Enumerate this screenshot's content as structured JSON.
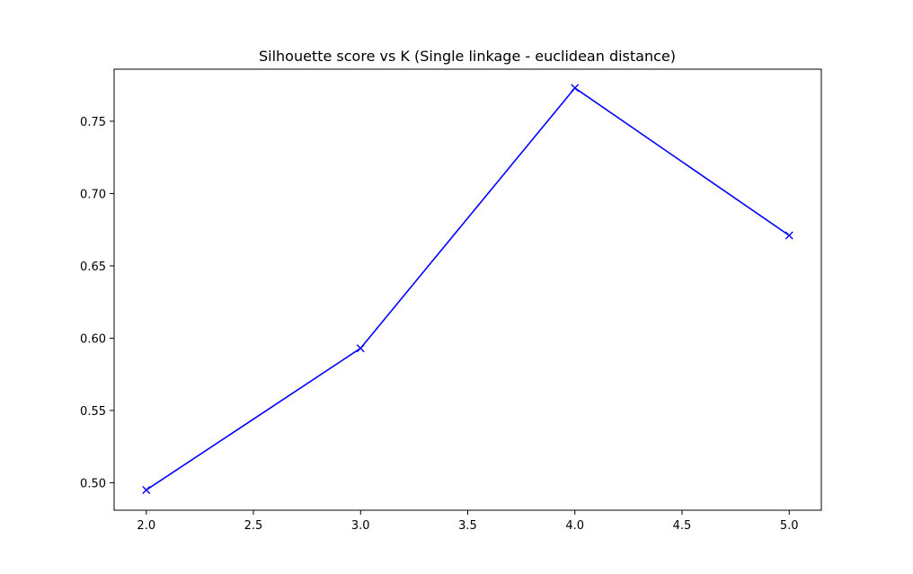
{
  "chart_data": {
    "type": "line",
    "title": "Silhouette score vs K (Single linkage - euclidean distance)",
    "xlabel": "",
    "ylabel": "",
    "xlim": [
      1.85,
      5.15
    ],
    "ylim": [
      0.481,
      0.786
    ],
    "x_ticks": [
      2.0,
      2.5,
      3.0,
      3.5,
      4.0,
      4.5,
      5.0
    ],
    "x_tick_labels": [
      "2.0",
      "2.5",
      "3.0",
      "3.5",
      "4.0",
      "4.5",
      "5.0"
    ],
    "y_ticks": [
      0.5,
      0.55,
      0.6,
      0.65,
      0.7,
      0.75
    ],
    "y_tick_labels": [
      "0.50",
      "0.55",
      "0.60",
      "0.65",
      "0.70",
      "0.75"
    ],
    "grid": false,
    "series": [
      {
        "x": [
          2,
          3,
          4,
          5
        ],
        "y": [
          0.495,
          0.593,
          0.773,
          0.671
        ],
        "color": "#0000ff",
        "marker": "x"
      }
    ]
  }
}
